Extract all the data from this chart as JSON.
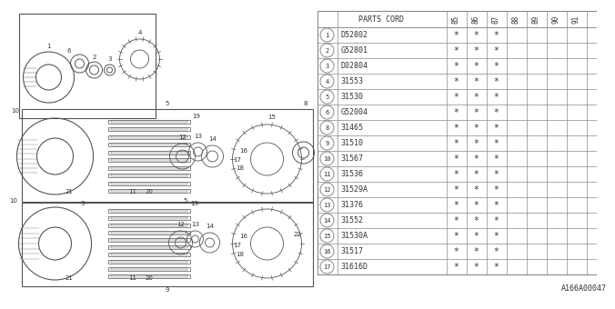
{
  "bg_color": "#ffffff",
  "ref_text": "A166A00047",
  "table_header_text": "PARTS CORD",
  "year_cols": [
    "85",
    "86",
    "87",
    "88",
    "89",
    "90",
    "91"
  ],
  "rows": [
    [
      "1",
      "D52802",
      true,
      true,
      true,
      false,
      false,
      false,
      false
    ],
    [
      "2",
      "G52801",
      true,
      true,
      true,
      false,
      false,
      false,
      false
    ],
    [
      "3",
      "D02804",
      true,
      true,
      true,
      false,
      false,
      false,
      false
    ],
    [
      "4",
      "31553",
      true,
      true,
      true,
      false,
      false,
      false,
      false
    ],
    [
      "5",
      "31530",
      true,
      true,
      true,
      false,
      false,
      false,
      false
    ],
    [
      "6",
      "G52004",
      true,
      true,
      true,
      false,
      false,
      false,
      false
    ],
    [
      "8",
      "31465",
      true,
      true,
      true,
      false,
      false,
      false,
      false
    ],
    [
      "9",
      "31510",
      true,
      true,
      true,
      false,
      false,
      false,
      false
    ],
    [
      "10",
      "31567",
      true,
      true,
      true,
      false,
      false,
      false,
      false
    ],
    [
      "11",
      "31536",
      true,
      true,
      true,
      false,
      false,
      false,
      false
    ],
    [
      "12",
      "31529A",
      true,
      true,
      true,
      false,
      false,
      false,
      false
    ],
    [
      "13",
      "31376",
      true,
      true,
      true,
      false,
      false,
      false,
      false
    ],
    [
      "14",
      "31552",
      true,
      true,
      true,
      false,
      false,
      false,
      false
    ],
    [
      "15",
      "31530A",
      true,
      true,
      true,
      false,
      false,
      false,
      false
    ],
    [
      "16",
      "31517",
      true,
      true,
      true,
      false,
      false,
      false,
      false
    ],
    [
      "17",
      "31616D",
      true,
      true,
      true,
      false,
      false,
      false,
      false
    ]
  ],
  "lc": "#888888",
  "tc": "#333333",
  "star": "*",
  "diag_lc": "#555555",
  "diag_hatch": "#777777"
}
